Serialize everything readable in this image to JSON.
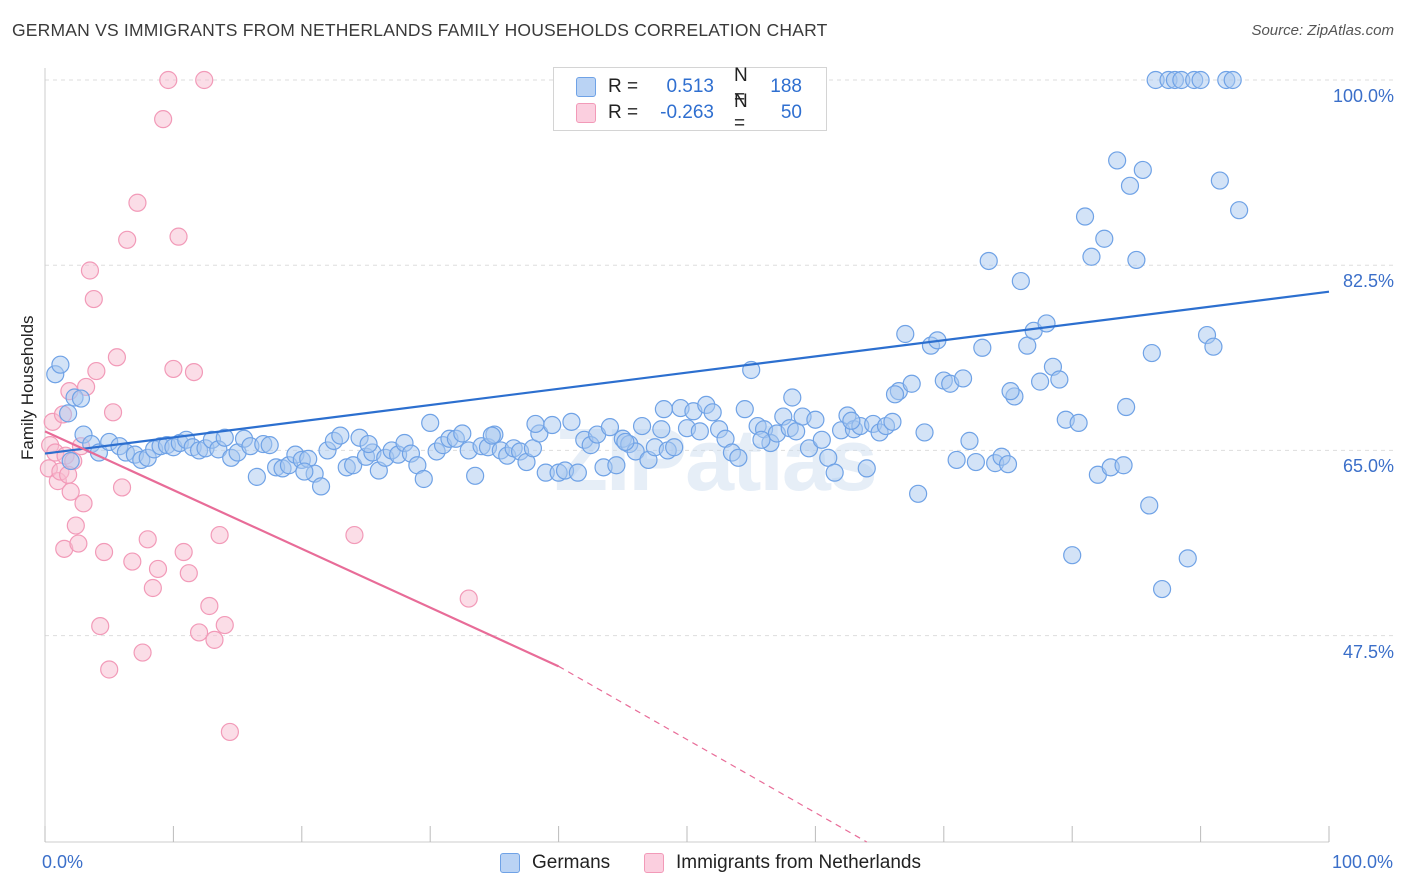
{
  "title": "GERMAN VS IMMIGRANTS FROM NETHERLANDS FAMILY HOUSEHOLDS CORRELATION CHART",
  "source": "Source: ZipAtlas.com",
  "watermark": "ZIPatlas",
  "colors": {
    "german": "#6fa2e6",
    "german_line": "#2c6fcf",
    "netherlands": "#f29ab8",
    "netherlands_line": "#e86c98",
    "tick_text": "#3b6fc9",
    "grid": "#dddddd"
  },
  "legend": {
    "rows": [
      {
        "r_label": "R =",
        "r_value": "0.513",
        "n_label": "N =",
        "n_value": "188"
      },
      {
        "r_label": "R =",
        "r_value": "-0.263",
        "n_label": "N =",
        "n_value": "50"
      }
    ]
  },
  "bottom_legend": {
    "germans": "Germans",
    "netherlands": "Immigrants from Netherlands"
  },
  "chart_data": {
    "type": "scatter",
    "title": "GERMAN VS IMMIGRANTS FROM NETHERLANDS FAMILY HOUSEHOLDS CORRELATION CHART",
    "xlabel": "",
    "ylabel": "Family Households",
    "xlim": [
      0,
      100
    ],
    "ylim": [
      28,
      100
    ],
    "x_tick_labels": [
      "0.0%",
      "100.0%"
    ],
    "y_ticks": [
      {
        "value": 47.5,
        "label": "47.5%"
      },
      {
        "value": 65.0,
        "label": "65.0%"
      },
      {
        "value": 82.5,
        "label": "82.5%"
      },
      {
        "value": 100.0,
        "label": "100.0%"
      }
    ],
    "grid": true,
    "legend_position": "top-center",
    "series": [
      {
        "name": "Germans",
        "color": "#6fa2e6",
        "trend": {
          "x0": 0.0,
          "y0": 64.7,
          "x1": 100.0,
          "y1": 80.0,
          "dashed_from": null
        },
        "points": [
          [
            0.8,
            72.2
          ],
          [
            1.2,
            73.1
          ],
          [
            1.8,
            68.5
          ],
          [
            2.3,
            70.0
          ],
          [
            2.8,
            69.9
          ],
          [
            3.0,
            66.5
          ],
          [
            3.6,
            65.6
          ],
          [
            4.2,
            64.8
          ],
          [
            5.0,
            65.8
          ],
          [
            5.8,
            65.4
          ],
          [
            6.3,
            64.8
          ],
          [
            7.0,
            64.6
          ],
          [
            7.5,
            64.1
          ],
          [
            8.0,
            64.3
          ],
          [
            8.5,
            65.1
          ],
          [
            9.0,
            65.4
          ],
          [
            9.5,
            65.5
          ],
          [
            10.0,
            65.3
          ],
          [
            10.5,
            65.7
          ],
          [
            11.0,
            66.0
          ],
          [
            11.5,
            65.3
          ],
          [
            12.0,
            65.0
          ],
          [
            12.5,
            65.2
          ],
          [
            13.0,
            66.0
          ],
          [
            13.5,
            65.1
          ],
          [
            14.0,
            66.2
          ],
          [
            14.5,
            64.3
          ],
          [
            15.0,
            64.8
          ],
          [
            15.5,
            66.1
          ],
          [
            16.0,
            65.4
          ],
          [
            16.5,
            62.5
          ],
          [
            17.0,
            65.6
          ],
          [
            17.5,
            65.5
          ],
          [
            18.0,
            63.4
          ],
          [
            18.5,
            63.3
          ],
          [
            19.0,
            63.6
          ],
          [
            19.5,
            64.6
          ],
          [
            20.0,
            64.1
          ],
          [
            20.5,
            64.2
          ],
          [
            21.0,
            62.8
          ],
          [
            21.5,
            61.6
          ],
          [
            22.0,
            65.0
          ],
          [
            22.5,
            65.9
          ],
          [
            23.0,
            66.4
          ],
          [
            23.5,
            63.4
          ],
          [
            24.0,
            63.6
          ],
          [
            24.5,
            66.2
          ],
          [
            25.0,
            64.4
          ],
          [
            25.5,
            64.8
          ],
          [
            26.0,
            63.1
          ],
          [
            26.5,
            64.3
          ],
          [
            27.0,
            65.0
          ],
          [
            27.5,
            64.6
          ],
          [
            28.0,
            65.7
          ],
          [
            28.5,
            64.7
          ],
          [
            29.0,
            63.6
          ],
          [
            29.5,
            62.3
          ],
          [
            30.0,
            67.6
          ],
          [
            30.5,
            64.9
          ],
          [
            31.0,
            65.5
          ],
          [
            31.5,
            66.1
          ],
          [
            32.0,
            66.1
          ],
          [
            32.5,
            66.6
          ],
          [
            33.0,
            65.0
          ],
          [
            33.5,
            62.6
          ],
          [
            34.0,
            65.4
          ],
          [
            34.5,
            65.3
          ],
          [
            35.0,
            66.5
          ],
          [
            35.5,
            65.0
          ],
          [
            36.0,
            64.5
          ],
          [
            36.5,
            65.2
          ],
          [
            37.0,
            64.9
          ],
          [
            37.5,
            63.9
          ],
          [
            38.0,
            65.2
          ],
          [
            38.5,
            66.6
          ],
          [
            39.0,
            62.9
          ],
          [
            39.5,
            67.4
          ],
          [
            40.0,
            62.9
          ],
          [
            40.5,
            63.1
          ],
          [
            41.0,
            67.7
          ],
          [
            41.5,
            62.9
          ],
          [
            42.0,
            66.0
          ],
          [
            42.5,
            65.5
          ],
          [
            43.0,
            66.5
          ],
          [
            43.5,
            63.4
          ],
          [
            44.0,
            67.2
          ],
          [
            44.5,
            63.6
          ],
          [
            45.0,
            66.1
          ],
          [
            45.5,
            65.6
          ],
          [
            46.0,
            64.9
          ],
          [
            46.5,
            67.3
          ],
          [
            47.0,
            64.1
          ],
          [
            47.5,
            65.3
          ],
          [
            48.0,
            67.0
          ],
          [
            48.5,
            65.0
          ],
          [
            49.0,
            65.3
          ],
          [
            49.5,
            69.0
          ],
          [
            50.0,
            67.1
          ],
          [
            50.5,
            68.7
          ],
          [
            51.0,
            66.8
          ],
          [
            51.5,
            69.3
          ],
          [
            52.0,
            68.6
          ],
          [
            52.5,
            67.0
          ],
          [
            53.0,
            66.1
          ],
          [
            53.5,
            64.8
          ],
          [
            54.0,
            64.3
          ],
          [
            54.5,
            68.9
          ],
          [
            55.0,
            72.6
          ],
          [
            55.5,
            67.3
          ],
          [
            56.0,
            67.0
          ],
          [
            56.5,
            65.7
          ],
          [
            57.0,
            66.6
          ],
          [
            57.5,
            68.2
          ],
          [
            58.0,
            67.1
          ],
          [
            58.5,
            66.8
          ],
          [
            59.0,
            68.2
          ],
          [
            59.5,
            65.2
          ],
          [
            60.0,
            67.9
          ],
          [
            60.5,
            66.0
          ],
          [
            61.0,
            64.3
          ],
          [
            61.5,
            62.9
          ],
          [
            62.0,
            66.9
          ],
          [
            62.5,
            68.3
          ],
          [
            63.0,
            67.0
          ],
          [
            63.5,
            67.3
          ],
          [
            64.0,
            63.3
          ],
          [
            64.5,
            67.5
          ],
          [
            65.0,
            66.7
          ],
          [
            65.5,
            67.3
          ],
          [
            66.0,
            67.7
          ],
          [
            66.5,
            70.6
          ],
          [
            67.0,
            76.0
          ],
          [
            67.5,
            71.3
          ],
          [
            68.0,
            60.9
          ],
          [
            68.5,
            66.7
          ],
          [
            69.0,
            74.9
          ],
          [
            69.5,
            75.4
          ],
          [
            70.0,
            71.6
          ],
          [
            70.5,
            71.3
          ],
          [
            71.0,
            64.1
          ],
          [
            71.5,
            71.8
          ],
          [
            72.0,
            65.9
          ],
          [
            72.5,
            63.9
          ],
          [
            73.0,
            74.7
          ],
          [
            73.5,
            82.9
          ],
          [
            74.0,
            63.8
          ],
          [
            74.5,
            64.4
          ],
          [
            75.0,
            63.7
          ],
          [
            75.5,
            70.1
          ],
          [
            76.0,
            81.0
          ],
          [
            76.5,
            74.9
          ],
          [
            77.0,
            76.3
          ],
          [
            77.5,
            71.5
          ],
          [
            78.0,
            77.0
          ],
          [
            78.5,
            72.9
          ],
          [
            79.0,
            71.7
          ],
          [
            79.5,
            67.9
          ],
          [
            80.0,
            55.1
          ],
          [
            80.5,
            67.6
          ],
          [
            81.0,
            87.1
          ],
          [
            81.5,
            83.3
          ],
          [
            82.0,
            62.7
          ],
          [
            82.5,
            85.0
          ],
          [
            83.0,
            63.4
          ],
          [
            83.5,
            92.4
          ],
          [
            84.0,
            63.6
          ],
          [
            84.5,
            90.0
          ],
          [
            85.0,
            83.0
          ],
          [
            85.5,
            91.5
          ],
          [
            86.0,
            59.8
          ],
          [
            86.5,
            100.0
          ],
          [
            87.0,
            51.9
          ],
          [
            87.5,
            100.0
          ],
          [
            88.0,
            100.0
          ],
          [
            88.5,
            100.0
          ],
          [
            89.0,
            54.8
          ],
          [
            89.5,
            100.0
          ],
          [
            90.0,
            100.0
          ],
          [
            90.5,
            75.9
          ],
          [
            91.0,
            74.8
          ],
          [
            91.5,
            90.5
          ],
          [
            92.0,
            100.0
          ],
          [
            92.5,
            100.0
          ],
          [
            93.0,
            87.7
          ],
          [
            20.2,
            63.0
          ],
          [
            34.8,
            66.4
          ],
          [
            45.2,
            65.8
          ],
          [
            55.8,
            66.0
          ],
          [
            62.8,
            67.8
          ],
          [
            25.2,
            65.6
          ],
          [
            38.2,
            67.5
          ],
          [
            48.2,
            68.9
          ],
          [
            58.2,
            70.0
          ],
          [
            66.2,
            70.3
          ],
          [
            75.2,
            70.6
          ],
          [
            84.2,
            69.1
          ],
          [
            86.2,
            74.2
          ],
          [
            2.0,
            64.0
          ]
        ]
      },
      {
        "name": "Immigrants from Netherlands",
        "color": "#f29ab8",
        "trend": {
          "x0": 0.0,
          "y0": 66.8,
          "x1": 40.0,
          "y1": 44.6,
          "dashed_to_x": 64.0,
          "dashed_to_y": 28.0
        },
        "points": [
          [
            0.3,
            63.3
          ],
          [
            0.4,
            65.5
          ],
          [
            0.6,
            67.7
          ],
          [
            0.8,
            64.8
          ],
          [
            1.0,
            62.1
          ],
          [
            1.2,
            63.0
          ],
          [
            1.4,
            68.4
          ],
          [
            1.5,
            55.7
          ],
          [
            1.6,
            64.5
          ],
          [
            1.8,
            62.7
          ],
          [
            1.9,
            70.6
          ],
          [
            2.0,
            61.1
          ],
          [
            2.2,
            64.0
          ],
          [
            2.4,
            57.9
          ],
          [
            2.6,
            56.2
          ],
          [
            2.8,
            65.4
          ],
          [
            3.0,
            60.0
          ],
          [
            3.2,
            71.0
          ],
          [
            3.5,
            82.0
          ],
          [
            3.8,
            79.3
          ],
          [
            4.0,
            72.5
          ],
          [
            4.3,
            48.4
          ],
          [
            4.6,
            55.4
          ],
          [
            5.0,
            44.3
          ],
          [
            5.3,
            68.6
          ],
          [
            5.6,
            73.8
          ],
          [
            6.0,
            61.5
          ],
          [
            6.4,
            84.9
          ],
          [
            6.8,
            54.5
          ],
          [
            7.2,
            88.4
          ],
          [
            7.6,
            45.9
          ],
          [
            8.0,
            56.6
          ],
          [
            8.4,
            52.0
          ],
          [
            8.8,
            53.8
          ],
          [
            9.2,
            96.3
          ],
          [
            9.6,
            100.0
          ],
          [
            10.0,
            72.7
          ],
          [
            10.4,
            85.2
          ],
          [
            10.8,
            55.4
          ],
          [
            11.2,
            53.4
          ],
          [
            11.6,
            72.4
          ],
          [
            12.0,
            47.8
          ],
          [
            12.4,
            100.0
          ],
          [
            12.8,
            50.3
          ],
          [
            13.2,
            47.1
          ],
          [
            13.6,
            57.0
          ],
          [
            14.0,
            48.5
          ],
          [
            14.4,
            38.4
          ],
          [
            24.1,
            57.0
          ],
          [
            33.0,
            51.0
          ]
        ]
      }
    ]
  }
}
